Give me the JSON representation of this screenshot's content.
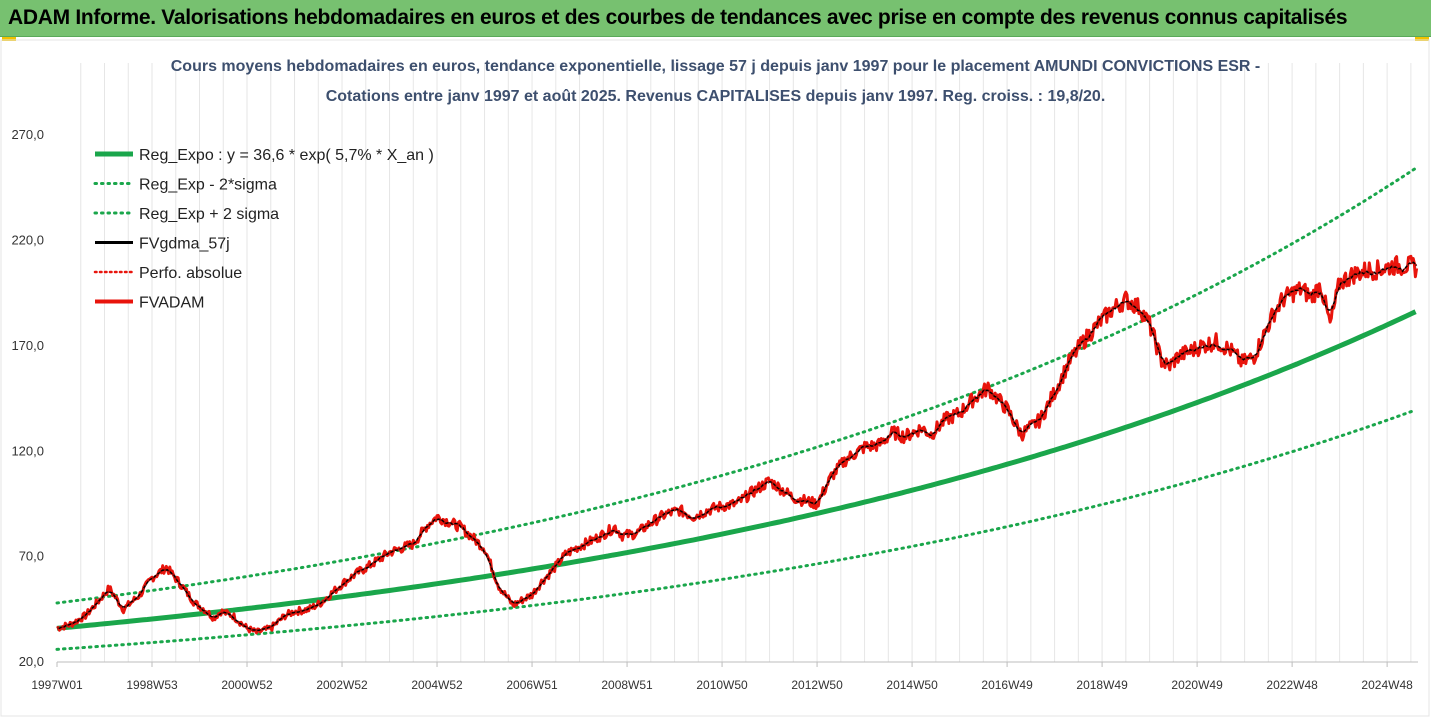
{
  "banner": {
    "title": "ADAM Informe. Valorisations hebdomadaires en euros et des courbes de tendances avec prise en compte des revenus connus capitalisés"
  },
  "colors": {
    "banner_bg": "#77c170",
    "trend_green": "#1aa64b",
    "fvadam_red": "#e8140c",
    "smooth_black": "#000000",
    "corner_yellow": "#f2c200"
  },
  "chart_data": {
    "type": "line",
    "title_line1": "Cours moyens hebdomadaires en euros, tendance exponentielle, lissage 57 j depuis janv 1997 pour le placement AMUNDI CONVICTIONS ESR -",
    "title_line2": "Cotations entre janv 1997 et août 2025. Revenus CAPITALISES depuis janv 1997. Reg. croiss. : 19,8/20.",
    "ylim": [
      20,
      290
    ],
    "yticks": [
      "20,0",
      "70,0",
      "120,0",
      "170,0",
      "220,0",
      "270,0"
    ],
    "ytick_values": [
      20,
      70,
      120,
      170,
      220,
      270
    ],
    "x_tick_labels": [
      "1997W01",
      "1998W53",
      "2000W52",
      "2002W52",
      "2004W52",
      "2006W51",
      "2008W51",
      "2010W50",
      "2012W50",
      "2014W50",
      "2016W49",
      "2018W49",
      "2020W49",
      "2022W48",
      "2024W48"
    ],
    "x_tick_years": [
      1997.0,
      1999.0,
      2001.0,
      2003.0,
      2005.0,
      2007.0,
      2009.0,
      2011.0,
      2013.0,
      2015.0,
      2017.0,
      2019.0,
      2021.0,
      2023.0,
      2025.0
    ],
    "xlim": [
      1997.0,
      2025.65
    ],
    "grid": "vertical",
    "legend_position": "top-left",
    "legend": [
      {
        "label": "Reg_Expo : y = 36,6 * exp( 5,7% *  X_an )",
        "style": "solid-green"
      },
      {
        "label": "Reg_Exp - 2*sigma",
        "style": "dotted-green"
      },
      {
        "label": "Reg_Exp + 2 sigma",
        "style": "dotted-green"
      },
      {
        "label": "FVgdma_57j",
        "style": "solid-black"
      },
      {
        "label": "Perfo. absolue",
        "style": "dotted-red"
      },
      {
        "label": "FVADAM",
        "style": "solid-red"
      }
    ],
    "regression": {
      "a": 36.6,
      "rate": 0.057
    },
    "upper_band": {
      "start": 48,
      "end": 255
    },
    "lower_band": {
      "start": 26,
      "end": 140
    },
    "series": [
      {
        "name": "FVADAM",
        "x": [
          1997.0,
          1997.3,
          1997.6,
          1997.8,
          1998.1,
          1998.4,
          1998.6,
          1998.75,
          1999.0,
          1999.3,
          1999.6,
          1999.9,
          2000.1,
          2000.3,
          2000.45,
          2000.7,
          2001.0,
          2001.2,
          2001.5,
          2001.8,
          2002.0,
          2002.3,
          2002.55,
          2002.8,
          2003.0,
          2003.3,
          2003.6,
          2004.0,
          2004.5,
          2004.8,
          2005.0,
          2005.5,
          2006.0,
          2006.3,
          2006.6,
          2007.0,
          2007.2,
          2007.45,
          2007.7,
          2008.0,
          2008.3,
          2008.6,
          2008.75,
          2008.9,
          2009.2,
          2009.5,
          2009.8,
          2010.1,
          2010.4,
          2010.7,
          2011.0,
          2011.3,
          2011.6,
          2012.0,
          2012.5,
          2013.0,
          2013.3,
          2013.6,
          2014.0,
          2014.3,
          2014.6,
          2014.85,
          2015.2,
          2015.4,
          2015.7,
          2016.0,
          2016.3,
          2016.6,
          2017.0,
          2017.3,
          2017.7,
          2018.0,
          2018.3,
          2018.6,
          2018.9,
          2019.2,
          2019.5,
          2019.8,
          2020.0,
          2020.15,
          2020.25,
          2020.4,
          2020.6,
          2020.9,
          2021.1,
          2021.4,
          2021.7,
          2021.95,
          2022.2,
          2022.4,
          2022.6,
          2022.8,
          2023.0,
          2023.2,
          2023.4,
          2023.6,
          2023.8,
          2024.0,
          2024.3,
          2024.6,
          2024.8,
          2024.95,
          2025.1,
          2025.3,
          2025.5,
          2025.62
        ],
        "y": [
          36,
          38,
          42,
          47,
          55,
          45,
          49,
          52,
          60,
          65,
          57,
          48,
          45,
          41,
          44,
          42,
          36,
          34,
          36,
          42,
          44,
          45,
          48,
          53,
          57,
          62,
          66,
          72,
          76,
          85,
          89,
          84,
          74,
          56,
          47,
          52,
          58,
          64,
          71,
          75,
          78,
          82,
          84,
          80,
          81,
          86,
          90,
          92,
          89,
          92,
          94,
          95,
          100,
          106,
          98,
          95,
          108,
          116,
          122,
          123,
          129,
          127,
          131,
          128,
          135,
          138,
          145,
          150,
          140,
          128,
          135,
          148,
          162,
          172,
          180,
          187,
          192,
          188,
          180,
          170,
          163,
          160,
          165,
          168,
          170,
          172,
          168,
          162,
          165,
          175,
          185,
          192,
          195,
          197,
          193,
          199,
          180,
          200,
          204,
          206,
          206,
          207,
          208,
          208,
          208,
          207
        ]
      }
    ]
  }
}
